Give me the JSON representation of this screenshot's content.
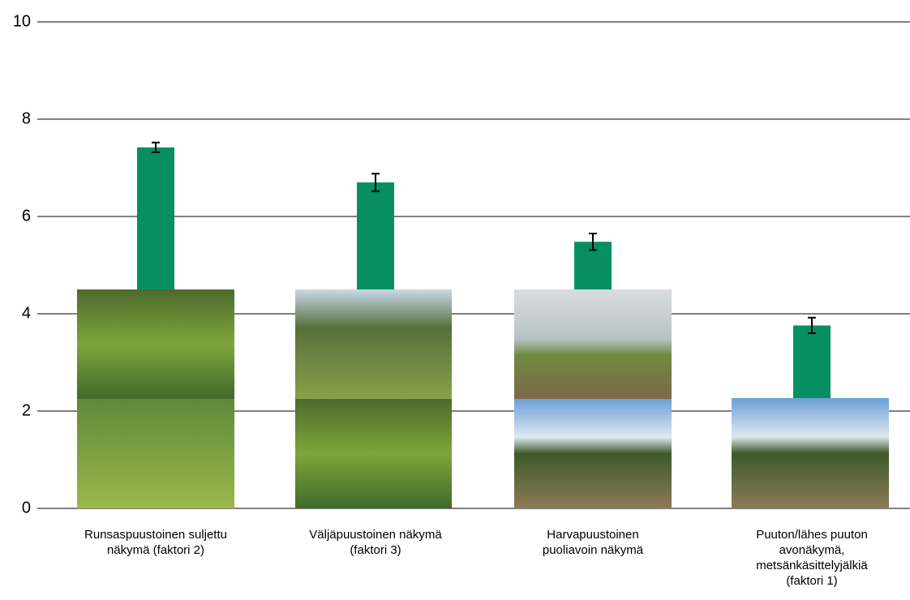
{
  "chart_data": {
    "type": "bar",
    "categories": [
      "Runsaspuustoinen suljettu näkymä (faktori 2)",
      "Väljäpuustoinen näkymä (faktori 3)",
      "Harvapuustoinen puoliavoin näkymä",
      "Puuton/lähes puuton avonäkymä, metsänkäsittelyjälkiä (faktori 1)"
    ],
    "values": [
      7.42,
      6.7,
      5.48,
      3.76
    ],
    "errors": [
      0.1,
      0.18,
      0.17,
      0.16
    ],
    "color": "#078f62",
    "ylim": [
      0,
      10
    ],
    "yticks": [
      0,
      2,
      4,
      6,
      8,
      10
    ],
    "grid": true
  }
}
